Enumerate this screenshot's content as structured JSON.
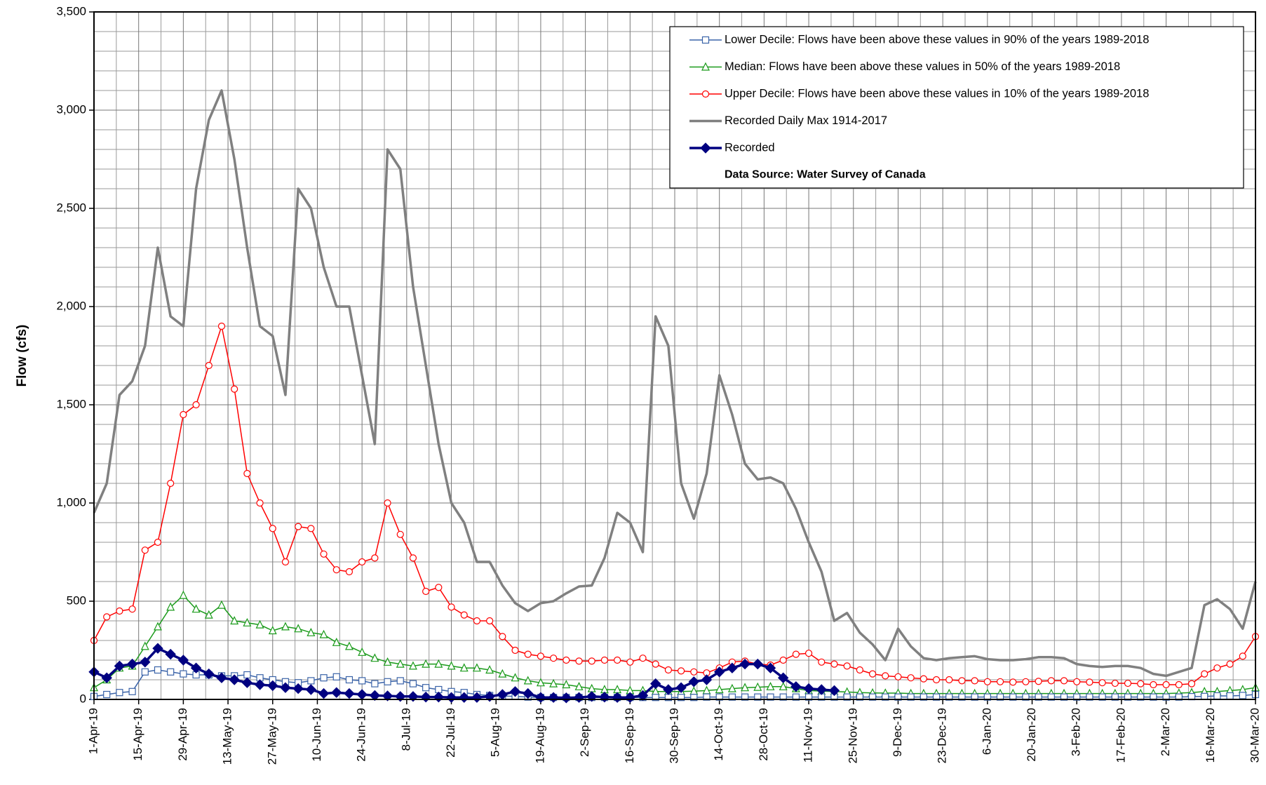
{
  "chart_data": {
    "type": "line",
    "ylabel": "Flow (cfs)",
    "x": [
      0,
      4,
      8,
      12,
      16,
      20,
      24,
      28,
      32,
      36,
      40,
      44,
      48,
      52,
      56,
      60,
      64,
      68,
      72,
      76,
      80,
      84,
      88,
      92,
      96,
      100,
      104,
      108,
      112,
      116,
      120,
      124,
      128,
      132,
      136,
      140,
      144,
      148,
      152,
      156,
      160,
      164,
      168,
      172,
      176,
      180,
      184,
      188,
      192,
      196,
      200,
      204,
      208,
      212,
      216,
      220,
      224,
      228,
      232,
      236,
      240,
      244,
      248,
      252,
      256,
      260,
      264,
      268,
      272,
      276,
      280,
      284,
      288,
      292,
      296,
      300,
      304,
      308,
      312,
      316,
      320,
      324,
      328,
      332,
      336,
      340,
      344,
      348,
      352,
      356,
      360,
      364
    ],
    "xlim": [
      0,
      364
    ],
    "xticks": [
      {
        "value": 0,
        "label": "1-Apr-19"
      },
      {
        "value": 14,
        "label": "15-Apr-19"
      },
      {
        "value": 28,
        "label": "29-Apr-19"
      },
      {
        "value": 42,
        "label": "13-May-19"
      },
      {
        "value": 56,
        "label": "27-May-19"
      },
      {
        "value": 70,
        "label": "10-Jun-19"
      },
      {
        "value": 84,
        "label": "24-Jun-19"
      },
      {
        "value": 98,
        "label": "8-Jul-19"
      },
      {
        "value": 112,
        "label": "22-Jul-19"
      },
      {
        "value": 126,
        "label": "5-Aug-19"
      },
      {
        "value": 140,
        "label": "19-Aug-19"
      },
      {
        "value": 154,
        "label": "2-Sep-19"
      },
      {
        "value": 168,
        "label": "16-Sep-19"
      },
      {
        "value": 182,
        "label": "30-Sep-19"
      },
      {
        "value": 196,
        "label": "14-Oct-19"
      },
      {
        "value": 210,
        "label": "28-Oct-19"
      },
      {
        "value": 224,
        "label": "11-Nov-19"
      },
      {
        "value": 238,
        "label": "25-Nov-19"
      },
      {
        "value": 252,
        "label": "9-Dec-19"
      },
      {
        "value": 266,
        "label": "23-Dec-19"
      },
      {
        "value": 280,
        "label": "6-Jan-20"
      },
      {
        "value": 294,
        "label": "20-Jan-20"
      },
      {
        "value": 308,
        "label": "3-Feb-20"
      },
      {
        "value": 322,
        "label": "17-Feb-20"
      },
      {
        "value": 336,
        "label": "2-Mar-20"
      },
      {
        "value": 350,
        "label": "16-Mar-20"
      },
      {
        "value": 364,
        "label": "30-Mar-20"
      }
    ],
    "xminorticks": [
      7,
      21,
      35,
      49,
      63,
      77,
      91,
      105,
      119,
      133,
      147,
      161,
      175,
      189,
      203,
      217,
      231,
      245,
      259,
      273,
      287,
      301,
      315,
      329,
      343,
      357
    ],
    "ylim": [
      0,
      3500
    ],
    "yticks": [
      0,
      500,
      {
        "value": 1000,
        "label": "1,000"
      },
      {
        "value": 1500,
        "label": "1,500"
      },
      {
        "value": 2000,
        "label": "2,000"
      },
      {
        "value": 2500,
        "label": "2,500"
      },
      {
        "value": 3000,
        "label": "3,000"
      },
      {
        "value": 3500,
        "label": "3,500"
      }
    ],
    "yminorticks": [
      100,
      200,
      300,
      400,
      600,
      700,
      800,
      900,
      1100,
      1200,
      1300,
      1400,
      1600,
      1700,
      1800,
      1900,
      2100,
      2200,
      2300,
      2400,
      2600,
      2700,
      2800,
      2900,
      3100,
      3200,
      3300,
      3400
    ],
    "grid": true,
    "legend_position": "upper right",
    "legend_note": "Data Source: Water Survey of Canada",
    "series": [
      {
        "name": "Lower Decile: Flows have been above these values in 90% of the years 1989-2018",
        "color": "#3a63a8",
        "marker": "square",
        "values": [
          15,
          25,
          35,
          40,
          140,
          150,
          140,
          130,
          125,
          125,
          120,
          120,
          125,
          110,
          100,
          90,
          85,
          95,
          110,
          115,
          100,
          95,
          80,
          90,
          95,
          80,
          60,
          50,
          40,
          35,
          25,
          20,
          18,
          15,
          12,
          10,
          10,
          10,
          10,
          10,
          10,
          10,
          10,
          10,
          10,
          10,
          10,
          10,
          12,
          12,
          12,
          12,
          12,
          12,
          12,
          12,
          12,
          12,
          12,
          12,
          12,
          12,
          12,
          12,
          12,
          12,
          12,
          12,
          12,
          12,
          12,
          12,
          12,
          12,
          12,
          12,
          12,
          12,
          12,
          12,
          12,
          12,
          12,
          12,
          12,
          12,
          14,
          15,
          18,
          18,
          20,
          25
        ]
      },
      {
        "name": "Median: Flows have been above these values in 50% of the years 1989-2018",
        "color": "#1a9a1a",
        "marker": "triangle",
        "values": [
          60,
          100,
          160,
          170,
          270,
          370,
          470,
          530,
          460,
          430,
          480,
          400,
          390,
          380,
          350,
          370,
          360,
          340,
          330,
          290,
          270,
          240,
          210,
          190,
          180,
          170,
          180,
          180,
          170,
          160,
          160,
          150,
          130,
          110,
          95,
          85,
          80,
          75,
          65,
          55,
          50,
          50,
          45,
          45,
          40,
          40,
          40,
          42,
          45,
          50,
          55,
          60,
          62,
          65,
          65,
          55,
          45,
          42,
          40,
          38,
          35,
          33,
          32,
          32,
          30,
          30,
          30,
          30,
          30,
          30,
          30,
          30,
          30,
          30,
          30,
          30,
          30,
          30,
          30,
          30,
          30,
          30,
          30,
          30,
          30,
          32,
          35,
          40,
          40,
          45,
          50,
          60
        ]
      },
      {
        "name": "Upper Decile: Flows have been above these values in 10% of the years 1989-2018",
        "color": "#ff0000",
        "marker": "circle",
        "values": [
          300,
          420,
          450,
          460,
          760,
          800,
          1100,
          1450,
          1500,
          1700,
          1900,
          1580,
          1150,
          1000,
          870,
          700,
          880,
          870,
          740,
          660,
          650,
          700,
          720,
          1000,
          840,
          720,
          550,
          570,
          470,
          430,
          400,
          400,
          320,
          250,
          230,
          220,
          210,
          200,
          195,
          195,
          200,
          200,
          190,
          210,
          180,
          150,
          145,
          140,
          135,
          160,
          190,
          195,
          180,
          175,
          200,
          230,
          235,
          190,
          180,
          170,
          150,
          130,
          120,
          115,
          110,
          105,
          100,
          100,
          95,
          95,
          90,
          90,
          88,
          90,
          92,
          95,
          95,
          90,
          88,
          85,
          82,
          82,
          80,
          75,
          75,
          75,
          80,
          130,
          160,
          180,
          220,
          320
        ]
      },
      {
        "name": "Recorded Daily Max 1914-2017",
        "color": "#808080",
        "marker": "none",
        "values": [
          950,
          1100,
          1550,
          1620,
          1800,
          2300,
          1950,
          1900,
          2600,
          2950,
          3100,
          2750,
          2300,
          1900,
          1850,
          1550,
          2600,
          2500,
          2200,
          2000,
          2000,
          1650,
          1300,
          2800,
          2700,
          2100,
          1700,
          1300,
          1000,
          900,
          700,
          700,
          580,
          490,
          450,
          490,
          500,
          540,
          575,
          580,
          720,
          950,
          900,
          750,
          1950,
          1800,
          1100,
          920,
          1150,
          1650,
          1450,
          1200,
          1120,
          1130,
          1100,
          970,
          800,
          650,
          400,
          440,
          340,
          280,
          200,
          360,
          270,
          210,
          200,
          210,
          215,
          220,
          205,
          200,
          200,
          205,
          215,
          215,
          210,
          180,
          170,
          165,
          170,
          170,
          160,
          130,
          120,
          140,
          160,
          480,
          510,
          460,
          360,
          600
        ]
      },
      {
        "name": "Recorded",
        "color": "#000080",
        "marker": "diamond",
        "values": [
          140,
          110,
          170,
          180,
          190,
          260,
          230,
          200,
          160,
          130,
          110,
          100,
          85,
          75,
          70,
          60,
          55,
          50,
          30,
          35,
          30,
          25,
          20,
          18,
          15,
          15,
          12,
          12,
          10,
          10,
          10,
          15,
          25,
          40,
          30,
          10,
          10,
          8,
          10,
          15,
          12,
          10,
          10,
          20,
          80,
          50,
          60,
          90,
          100,
          140,
          160,
          180,
          180,
          160,
          110,
          65,
          55,
          50,
          45,
          null,
          null,
          null,
          null,
          null,
          null,
          null,
          null,
          null,
          null,
          null,
          null,
          null,
          null,
          null,
          null,
          null,
          null,
          null,
          null,
          null,
          null,
          null,
          null,
          null,
          null,
          null,
          null,
          null,
          null,
          null,
          null,
          null
        ]
      }
    ]
  }
}
